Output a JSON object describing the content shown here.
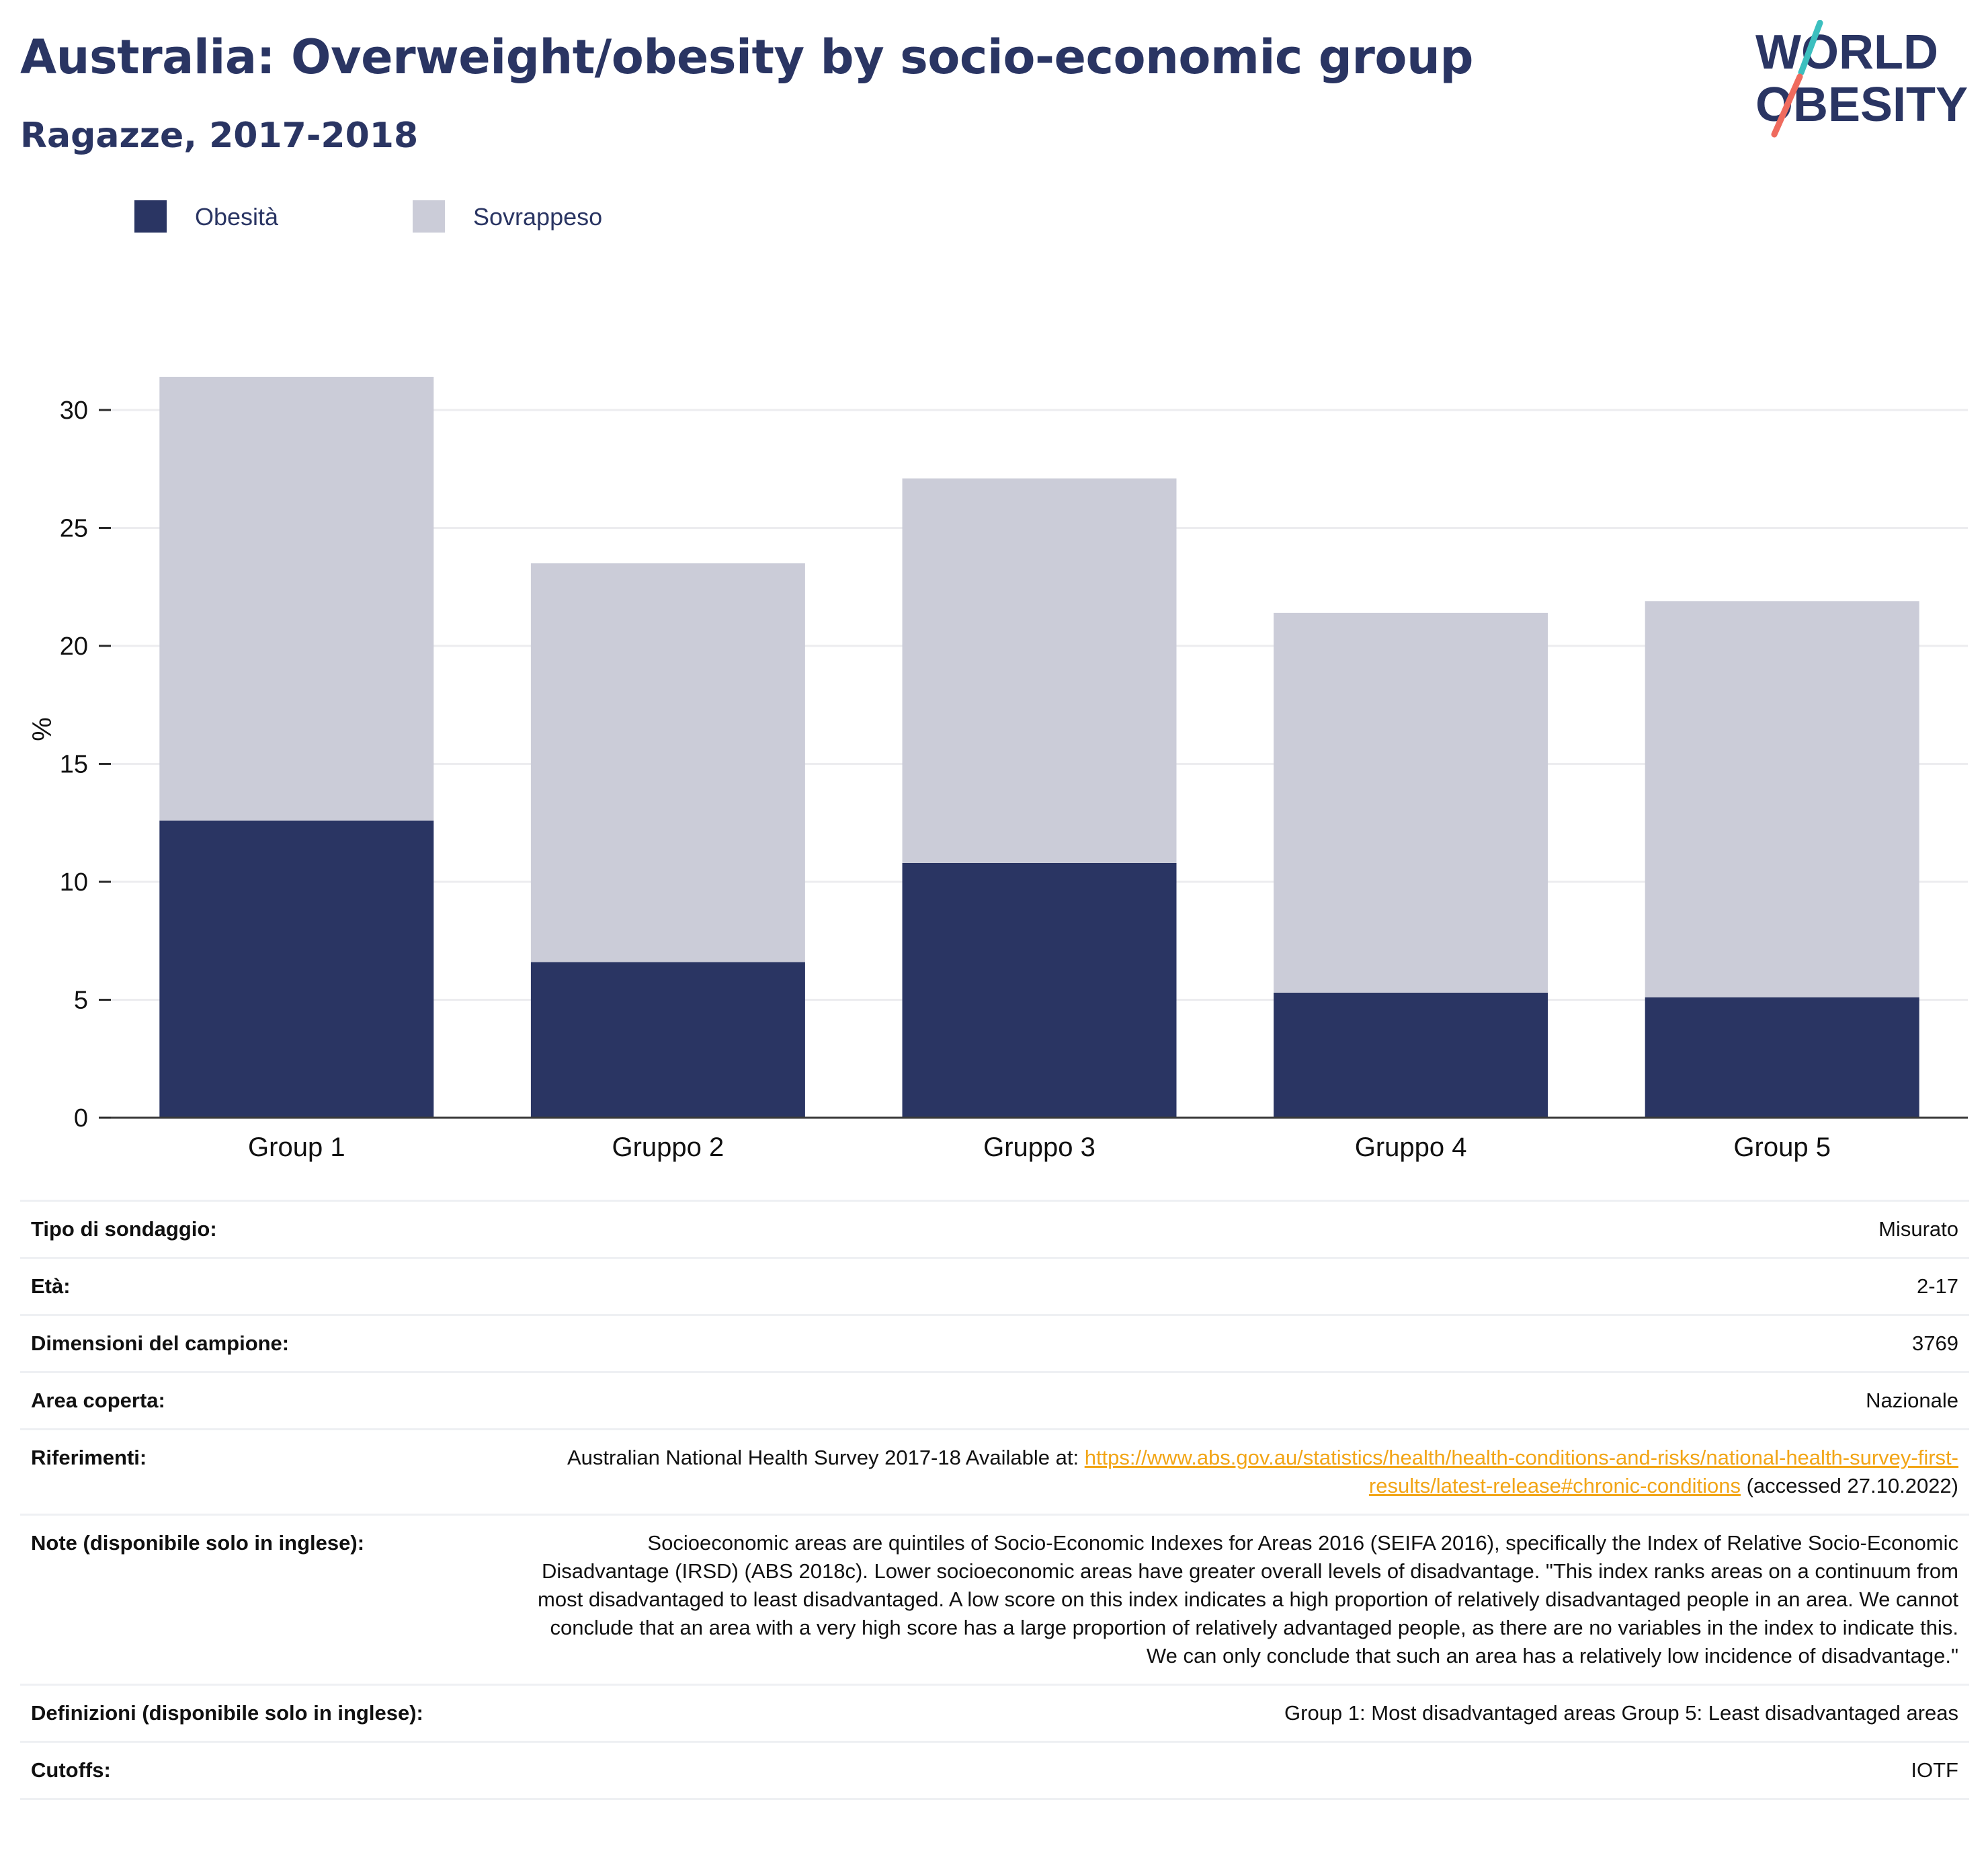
{
  "title": "Australia: Overweight/obesity by socio-economic group",
  "subtitle": "Ragazze, 2017-2018",
  "logo": {
    "line1": "WORLD",
    "line2": "OBESITY"
  },
  "colors": {
    "obesity": "#2a3563",
    "overweight": "#cbccd8",
    "title": "#2a3563",
    "link": "#f2a516",
    "logo_teal": "#3cbfbf",
    "logo_coral": "#ef6b5e"
  },
  "chart_data": {
    "type": "bar",
    "stacked": true,
    "categories": [
      "Group 1",
      "Gruppo 2",
      "Gruppo 3",
      "Gruppo 4",
      "Group 5"
    ],
    "series": [
      {
        "name": "Obesità",
        "values": [
          12.6,
          6.6,
          10.8,
          5.3,
          5.1
        ]
      },
      {
        "name": "Sovrappeso",
        "values": [
          18.8,
          16.9,
          16.3,
          16.1,
          16.8
        ]
      }
    ],
    "ylabel": "%",
    "xlabel": "",
    "ylim": [
      0,
      32
    ],
    "yticks": [
      0,
      5,
      10,
      15,
      20,
      25,
      30
    ],
    "grid": true,
    "legend_position": "top-left"
  },
  "info": [
    {
      "label": "Tipo di sondaggio:",
      "value": "Misurato"
    },
    {
      "label": "Età:",
      "value": "2-17"
    },
    {
      "label": "Dimensioni del campione:",
      "value": "3769"
    },
    {
      "label": "Area coperta:",
      "value": "Nazionale"
    },
    {
      "label": "Riferimenti:",
      "value_prefix": "Australian National Health Survey 2017-18 Available at: ",
      "link": "https://www.abs.gov.au/statistics/health/health-conditions-and-risks/national-health-survey-first-results/latest-release#chronic-conditions",
      "value_suffix": " (accessed 27.10.2022)"
    },
    {
      "label": "Note (disponibile solo in inglese):",
      "value": "Socioeconomic areas are quintiles of Socio-Economic Indexes for Areas 2016 (SEIFA 2016), specifically the Index of Relative Socio-Economic Disadvantage (IRSD) (ABS 2018c). Lower socioeconomic areas have greater overall levels of disadvantage. \"This index ranks areas on a continuum from most disadvantaged to least disadvantaged. A low score on this index indicates a high proportion of relatively disadvantaged people in an area. We cannot conclude that an area with a very high score has a large proportion of relatively advantaged people, as there are no variables in the index to indicate this. We can only conclude that such an area has a relatively low incidence of disadvantage.\""
    },
    {
      "label": "Definizioni (disponibile solo in inglese):",
      "value": "Group 1: Most disadvantaged areas Group 5: Least disadvantaged areas"
    },
    {
      "label": "Cutoffs:",
      "value": "IOTF"
    }
  ]
}
